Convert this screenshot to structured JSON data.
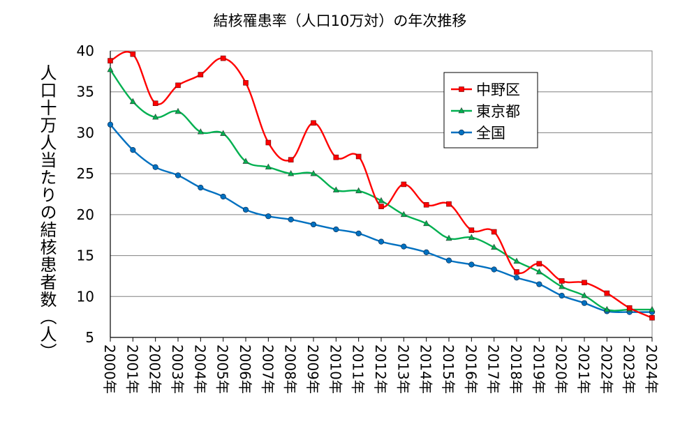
{
  "chart_data": {
    "type": "line",
    "title": "結核罹患率（人口10万対）の年次推移",
    "xlabel": "",
    "ylabel": "人口十万人当たりの結核患者数（人）",
    "ylim": [
      5,
      40
    ],
    "yticks": [
      5,
      10,
      15,
      20,
      25,
      30,
      35,
      40
    ],
    "grid": true,
    "legend_position": "top-right",
    "categories": [
      "2000年",
      "2001年",
      "2002年",
      "2003年",
      "2004年",
      "2005年",
      "2006年",
      "2007年",
      "2008年",
      "2009年",
      "2010年",
      "2011年",
      "2012年",
      "2013年",
      "2014年",
      "2015年",
      "2016年",
      "2017年",
      "2018年",
      "2019年",
      "2020年",
      "2021年",
      "2022年",
      "2023年",
      "2024年"
    ],
    "series": [
      {
        "name": "中野区",
        "color": "#ff0000",
        "marker": "square",
        "values": [
          38.8,
          39.6,
          33.6,
          35.8,
          37.1,
          39.1,
          36.1,
          28.8,
          26.7,
          31.2,
          27.0,
          27.1,
          21.0,
          23.7,
          21.2,
          21.3,
          18.1,
          17.9,
          13.0,
          14.0,
          11.9,
          11.7,
          10.4,
          8.6,
          7.4
        ]
      },
      {
        "name": "東京都",
        "color": "#00b050",
        "marker": "triangle",
        "values": [
          37.7,
          33.8,
          31.9,
          32.6,
          30.1,
          29.9,
          26.5,
          25.8,
          25.0,
          25.0,
          23.0,
          22.9,
          21.7,
          20.0,
          18.9,
          17.1,
          17.2,
          16.0,
          14.3,
          13.0,
          11.2,
          10.1,
          8.4,
          8.4,
          8.4
        ]
      },
      {
        "name": "全国",
        "color": "#0070c0",
        "marker": "circle",
        "values": [
          31.0,
          27.9,
          25.8,
          24.8,
          23.3,
          22.2,
          20.6,
          19.8,
          19.4,
          18.8,
          18.2,
          17.7,
          16.7,
          16.1,
          15.4,
          14.4,
          13.9,
          13.3,
          12.3,
          11.5,
          10.1,
          9.2,
          8.2,
          8.1,
          8.1
        ]
      }
    ]
  }
}
